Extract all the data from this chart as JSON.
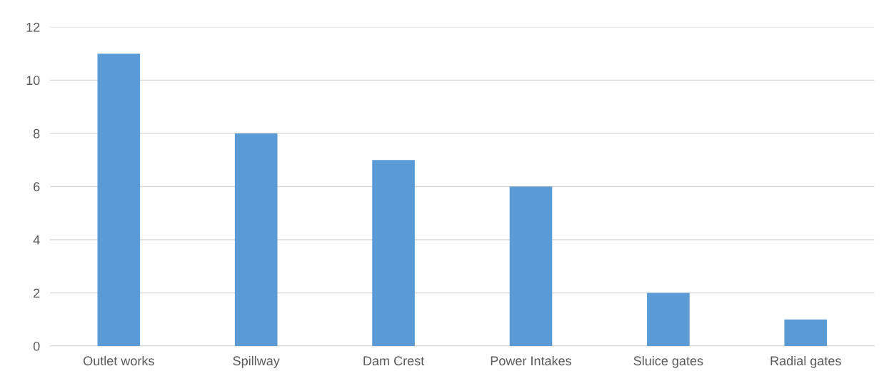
{
  "chart_data": {
    "type": "bar",
    "categories": [
      "Outlet works",
      "Spillway",
      "Dam Crest",
      "Power Intakes",
      "Sluice gates",
      "Radial gates"
    ],
    "values": [
      11,
      8,
      7,
      6,
      2,
      1
    ],
    "color": "#5b9bd5",
    "ylim": [
      0,
      12
    ],
    "yticks": [
      0,
      2,
      4,
      6,
      8,
      10,
      12
    ],
    "grid": "y",
    "legend": false
  }
}
